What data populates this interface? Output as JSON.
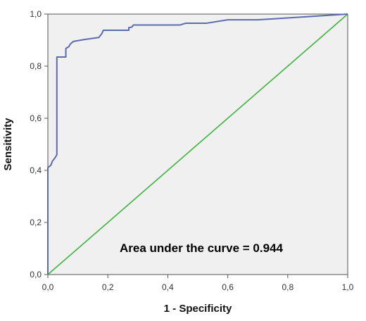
{
  "chart_data": {
    "type": "line",
    "xlabel": "1 - Specificity",
    "ylabel": "Sensitivity",
    "xlim": [
      0,
      1
    ],
    "ylim": [
      0,
      1
    ],
    "xticks": [
      "0,0",
      "0,2",
      "0,4",
      "0,6",
      "0,8",
      "1,0"
    ],
    "yticks": [
      "0,0",
      "0,2",
      "0,4",
      "0,6",
      "0,8",
      "1,0"
    ],
    "annotation": "Area under the curve = 0.944",
    "grid": false,
    "colors": {
      "plot_bg": "#f0f0f0",
      "roc": "#5b6bb0",
      "reference": "#3cb43c"
    },
    "series": [
      {
        "values": [
          [
            0.0,
            0.0
          ],
          [
            0.0,
            0.41
          ],
          [
            0.01,
            0.42
          ],
          [
            0.015,
            0.435
          ],
          [
            0.025,
            0.45
          ],
          [
            0.03,
            0.46
          ],
          [
            0.03,
            0.835
          ],
          [
            0.06,
            0.835
          ],
          [
            0.06,
            0.868
          ],
          [
            0.07,
            0.875
          ],
          [
            0.075,
            0.885
          ],
          [
            0.085,
            0.895
          ],
          [
            0.12,
            0.902
          ],
          [
            0.17,
            0.91
          ],
          [
            0.18,
            0.925
          ],
          [
            0.185,
            0.938
          ],
          [
            0.27,
            0.938
          ],
          [
            0.27,
            0.948
          ],
          [
            0.28,
            0.95
          ],
          [
            0.285,
            0.958
          ],
          [
            0.44,
            0.958
          ],
          [
            0.46,
            0.965
          ],
          [
            0.53,
            0.965
          ],
          [
            0.6,
            0.978
          ],
          [
            0.7,
            0.978
          ],
          [
            1.0,
            1.0
          ]
        ]
      },
      {
        "values": [
          [
            0,
            0
          ],
          [
            1,
            1
          ]
        ]
      }
    ]
  }
}
